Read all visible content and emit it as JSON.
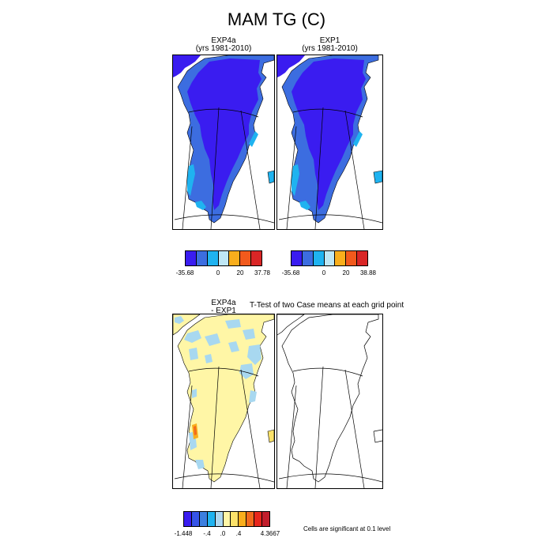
{
  "figure": {
    "title": "MAM TG (C)"
  },
  "panels": {
    "top_left": {
      "title_line1": "EXP4a",
      "title_line2": "(yrs 1981-2010)"
    },
    "top_right": {
      "title_line1": "EXP1",
      "title_line2": "(yrs 1981-2010)"
    },
    "bottom_left": {
      "title_line1": "EXP4a",
      "title_line2": "- EXP1"
    },
    "bottom_right": {
      "title": "T-Test of two Case means at each grid point"
    }
  },
  "colorbars": {
    "top_left": {
      "colors": [
        "#3a1cf0",
        "#3c6de0",
        "#1fb3f0",
        "#bfe7f5",
        "#f9ae1c",
        "#f25a1c",
        "#d92626"
      ],
      "labels": [
        "-35.68",
        "0",
        "20",
        "37.78"
      ]
    },
    "top_right": {
      "colors": [
        "#3a1cf0",
        "#3c6de0",
        "#1fb3f0",
        "#bfe7f5",
        "#f9ae1c",
        "#f25a1c",
        "#d92626"
      ],
      "labels": [
        "-35.68",
        "0",
        "20",
        "38.88"
      ]
    },
    "bottom": {
      "colors": [
        "#3a1cf0",
        "#3654e8",
        "#3c7fe0",
        "#1fb3f0",
        "#aed8f0",
        "#fff6a6",
        "#fce26a",
        "#f9ae1c",
        "#f26a1c",
        "#e8261c",
        "#c21e2c"
      ],
      "labels": [
        "-1.448",
        "-.4",
        ".0",
        ".4",
        "4.3667"
      ]
    }
  },
  "note": "Cells are significant at 0.1 level",
  "colors": {
    "deep_blue": "#3a1cf0",
    "mid_blue": "#3c6de0",
    "light_blue": "#1fb3f0",
    "pale_blue": "#a8d8f0",
    "pale_yellow": "#fff6a6",
    "orange": "#f9ae1c"
  }
}
